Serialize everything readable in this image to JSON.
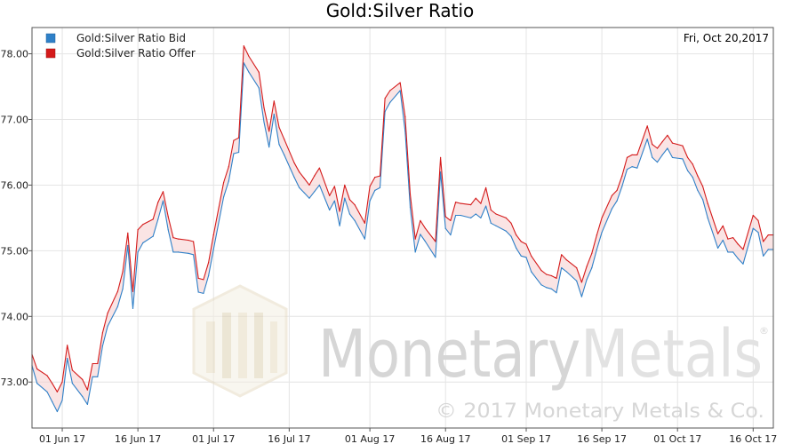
{
  "chart_data": {
    "type": "line",
    "title": "Gold:Silver Ratio",
    "date_label": "Fri, Oct 20,2017",
    "xlabel": "",
    "ylabel": "",
    "ylim": [
      72.3,
      78.4
    ],
    "y_ticks": [
      "73.00",
      "74.00",
      "75.00",
      "76.00",
      "77.00",
      "78.00"
    ],
    "x_ticks": [
      {
        "label": "01 Jun 17",
        "date": "2017-06-01"
      },
      {
        "label": "16 Jun 17",
        "date": "2017-06-16"
      },
      {
        "label": "01 Jul 17",
        "date": "2017-07-01"
      },
      {
        "label": "16 Jul 17",
        "date": "2017-07-16"
      },
      {
        "label": "01 Aug 17",
        "date": "2017-08-01"
      },
      {
        "label": "16 Aug 17",
        "date": "2017-08-16"
      },
      {
        "label": "01 Sep 17",
        "date": "2017-09-01"
      },
      {
        "label": "16 Sep 17",
        "date": "2017-09-16"
      },
      {
        "label": "01 Oct 17",
        "date": "2017-10-01"
      },
      {
        "label": "16 Oct 17",
        "date": "2017-10-16"
      }
    ],
    "x": [
      "2017-05-26",
      "2017-05-27",
      "2017-05-29",
      "2017-05-30",
      "2017-05-31",
      "2017-06-01",
      "2017-06-02",
      "2017-06-03",
      "2017-06-05",
      "2017-06-06",
      "2017-06-07",
      "2017-06-08",
      "2017-06-09",
      "2017-06-10",
      "2017-06-12",
      "2017-06-13",
      "2017-06-14",
      "2017-06-15",
      "2017-06-16",
      "2017-06-17",
      "2017-06-19",
      "2017-06-20",
      "2017-06-21",
      "2017-06-22",
      "2017-06-23",
      "2017-06-24",
      "2017-06-26",
      "2017-06-27",
      "2017-06-28",
      "2017-06-29",
      "2017-06-30",
      "2017-07-01",
      "2017-07-03",
      "2017-07-04",
      "2017-07-05",
      "2017-07-06",
      "2017-07-07",
      "2017-07-08",
      "2017-07-10",
      "2017-07-11",
      "2017-07-12",
      "2017-07-13",
      "2017-07-14",
      "2017-07-15",
      "2017-07-17",
      "2017-07-18",
      "2017-07-19",
      "2017-07-20",
      "2017-07-21",
      "2017-07-22",
      "2017-07-24",
      "2017-07-25",
      "2017-07-26",
      "2017-07-27",
      "2017-07-28",
      "2017-07-29",
      "2017-07-31",
      "2017-08-01",
      "2017-08-02",
      "2017-08-03",
      "2017-08-04",
      "2017-08-05",
      "2017-08-07",
      "2017-08-08",
      "2017-08-09",
      "2017-08-10",
      "2017-08-11",
      "2017-08-12",
      "2017-08-14",
      "2017-08-15",
      "2017-08-16",
      "2017-08-17",
      "2017-08-18",
      "2017-08-19",
      "2017-08-21",
      "2017-08-22",
      "2017-08-23",
      "2017-08-24",
      "2017-08-25",
      "2017-08-26",
      "2017-08-28",
      "2017-08-29",
      "2017-08-30",
      "2017-08-31",
      "2017-09-01",
      "2017-09-02",
      "2017-09-04",
      "2017-09-05",
      "2017-09-06",
      "2017-09-07",
      "2017-09-08",
      "2017-09-09",
      "2017-09-11",
      "2017-09-12",
      "2017-09-13",
      "2017-09-14",
      "2017-09-15",
      "2017-09-16",
      "2017-09-18",
      "2017-09-19",
      "2017-09-20",
      "2017-09-21",
      "2017-09-22",
      "2017-09-23",
      "2017-09-25",
      "2017-09-26",
      "2017-09-27",
      "2017-09-28",
      "2017-09-29",
      "2017-09-30",
      "2017-10-02",
      "2017-10-03",
      "2017-10-04",
      "2017-10-05",
      "2017-10-06",
      "2017-10-07",
      "2017-10-09",
      "2017-10-10",
      "2017-10-11",
      "2017-10-12",
      "2017-10-13",
      "2017-10-14",
      "2017-10-16",
      "2017-10-17",
      "2017-10-18",
      "2017-10-19",
      "2017-10-20"
    ],
    "series": [
      {
        "name": "Gold:Silver Ratio Bid",
        "color": "#2f80c8",
        "values": [
          73.25,
          72.98,
          72.85,
          72.7,
          72.55,
          72.72,
          73.36,
          72.98,
          72.78,
          72.66,
          73.08,
          73.08,
          73.55,
          73.85,
          74.15,
          74.42,
          75.08,
          74.12,
          74.98,
          75.12,
          75.22,
          75.48,
          75.76,
          75.32,
          74.98,
          74.98,
          74.96,
          74.94,
          74.37,
          74.35,
          74.62,
          75.02,
          75.82,
          76.06,
          76.48,
          76.5,
          77.86,
          77.72,
          77.48,
          76.96,
          76.58,
          77.08,
          76.62,
          76.46,
          76.12,
          75.96,
          75.88,
          75.8,
          75.9,
          76.0,
          75.62,
          75.76,
          75.38,
          75.8,
          75.56,
          75.46,
          75.18,
          75.76,
          75.92,
          75.96,
          77.12,
          77.26,
          77.44,
          76.82,
          75.66,
          74.98,
          75.25,
          75.14,
          74.9,
          76.2,
          75.34,
          75.24,
          75.54,
          75.54,
          75.5,
          75.56,
          75.5,
          75.68,
          75.42,
          75.38,
          75.3,
          75.22,
          75.04,
          74.92,
          74.9,
          74.68,
          74.48,
          74.44,
          74.42,
          74.36,
          74.74,
          74.68,
          74.54,
          74.3,
          74.56,
          74.74,
          75.02,
          75.28,
          75.64,
          75.76,
          75.98,
          76.24,
          76.28,
          76.26,
          76.7,
          76.42,
          76.35,
          76.46,
          76.56,
          76.42,
          76.4,
          76.22,
          76.12,
          75.92,
          75.78,
          75.5,
          75.04,
          75.16,
          74.98,
          74.98,
          74.88,
          74.8,
          75.34,
          75.28,
          74.92,
          75.02,
          75.02
        ]
      },
      {
        "name": "Gold:Silver Ratio Offer",
        "color": "#d41a1a",
        "values": [
          73.42,
          73.2,
          73.1,
          72.98,
          72.85,
          73.0,
          73.56,
          73.18,
          73.04,
          72.88,
          73.28,
          73.28,
          73.75,
          74.05,
          74.38,
          74.68,
          75.27,
          74.38,
          75.32,
          75.4,
          75.48,
          75.74,
          75.9,
          75.52,
          75.2,
          75.18,
          75.16,
          75.14,
          74.58,
          74.56,
          74.82,
          75.24,
          76.04,
          76.28,
          76.68,
          76.72,
          78.12,
          77.96,
          77.72,
          77.18,
          76.82,
          77.28,
          76.88,
          76.7,
          76.34,
          76.2,
          76.1,
          76.0,
          76.14,
          76.26,
          75.84,
          75.98,
          75.6,
          76.0,
          75.78,
          75.7,
          75.42,
          75.98,
          76.12,
          76.14,
          77.32,
          77.44,
          77.56,
          77.04,
          75.86,
          75.18,
          75.46,
          75.34,
          75.14,
          76.42,
          75.52,
          75.46,
          75.74,
          75.72,
          75.7,
          75.8,
          75.72,
          75.96,
          75.62,
          75.56,
          75.5,
          75.42,
          75.24,
          75.14,
          75.1,
          74.92,
          74.7,
          74.64,
          74.62,
          74.58,
          74.94,
          74.86,
          74.74,
          74.52,
          74.76,
          74.96,
          75.24,
          75.5,
          75.84,
          75.92,
          76.14,
          76.42,
          76.46,
          76.46,
          76.9,
          76.62,
          76.56,
          76.66,
          76.76,
          76.64,
          76.6,
          76.42,
          76.32,
          76.14,
          75.98,
          75.72,
          75.26,
          75.38,
          75.18,
          75.2,
          75.1,
          75.02,
          75.54,
          75.46,
          75.14,
          75.24,
          75.24
        ]
      }
    ],
    "legend_position": "top-left",
    "grid": true,
    "watermark": {
      "brand": "MonetaryMetals",
      "brand_part1": "Monetary",
      "brand_part2": "Metals",
      "registered": "®",
      "copyright": "© 2017 Monetary Metals & Co."
    }
  }
}
